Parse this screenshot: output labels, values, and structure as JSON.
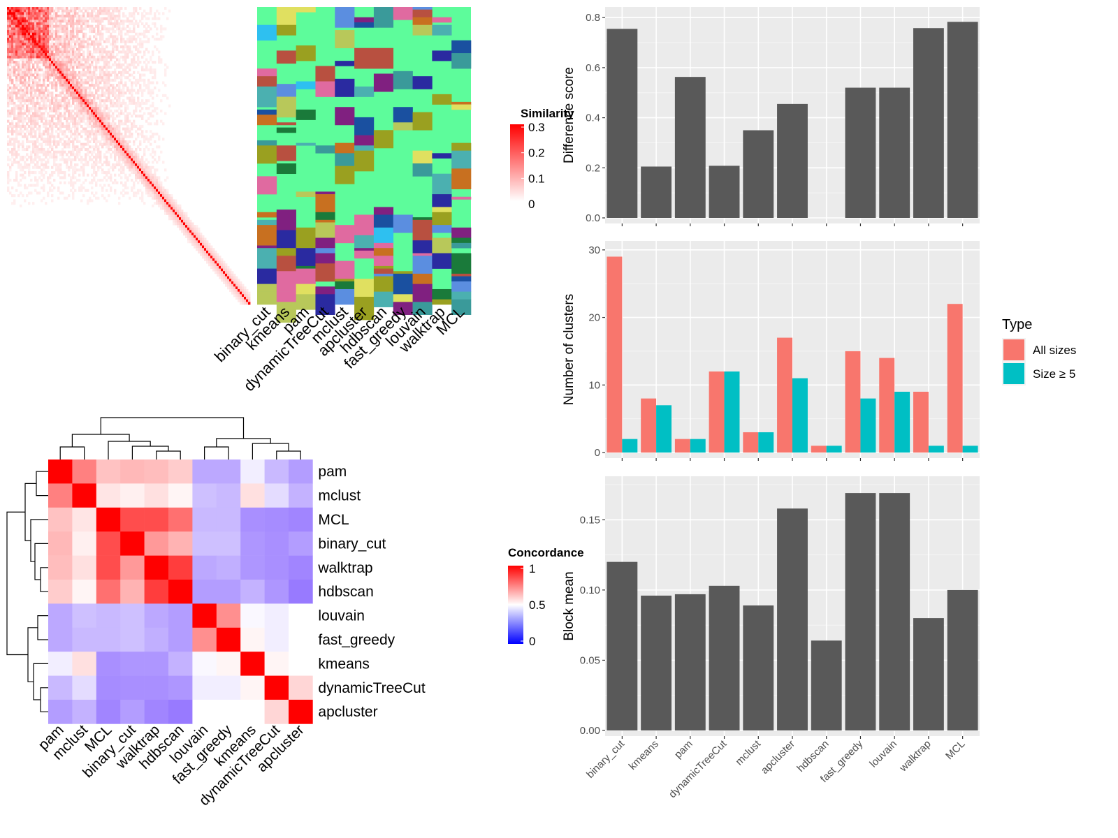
{
  "methods_col_order": [
    "binary_cut",
    "kmeans",
    "pam",
    "dynamicTreeCut",
    "mclust",
    "apcluster",
    "hdbscan",
    "fast_greedy",
    "louvain",
    "walktrap",
    "MCL"
  ],
  "similarity_legend": {
    "title": "Similarity",
    "ticks": [
      "0.3",
      "0.2",
      "0.1",
      "0"
    ],
    "colors": {
      "low": "#ffffff",
      "high": "#ff0000"
    }
  },
  "concordance_legend": {
    "title": "Concordance",
    "ticks": [
      "1",
      "0.5",
      "0"
    ],
    "colors": {
      "low": "#0000ff",
      "mid": "#ffffff",
      "high": "#ff0000"
    }
  },
  "concordance_order": [
    "pam",
    "mclust",
    "MCL",
    "binary_cut",
    "walktrap",
    "hdbscan",
    "louvain",
    "fast_greedy",
    "kmeans",
    "dynamicTreeCut",
    "apcluster"
  ],
  "concordance_matrix": [
    [
      1.0,
      0.75,
      0.62,
      0.64,
      0.63,
      0.6,
      0.25,
      0.25,
      0.45,
      0.3,
      0.22
    ],
    [
      0.75,
      1.0,
      0.55,
      0.53,
      0.56,
      0.52,
      0.32,
      0.3,
      0.56,
      0.4,
      0.28
    ],
    [
      0.62,
      0.55,
      1.0,
      0.85,
      0.85,
      0.78,
      0.3,
      0.3,
      0.18,
      0.17,
      0.15
    ],
    [
      0.64,
      0.53,
      0.85,
      1.0,
      0.7,
      0.65,
      0.32,
      0.32,
      0.2,
      0.18,
      0.22
    ],
    [
      0.63,
      0.56,
      0.85,
      0.7,
      1.0,
      0.88,
      0.25,
      0.27,
      0.2,
      0.18,
      0.15
    ],
    [
      0.6,
      0.52,
      0.78,
      0.65,
      0.88,
      1.0,
      0.22,
      0.22,
      0.28,
      0.2,
      0.12
    ],
    [
      0.25,
      0.32,
      0.3,
      0.32,
      0.25,
      0.22,
      1.0,
      0.72,
      0.48,
      0.45,
      0.5
    ],
    [
      0.25,
      0.3,
      0.3,
      0.32,
      0.27,
      0.22,
      0.72,
      1.0,
      0.52,
      0.45,
      0.5
    ],
    [
      0.45,
      0.56,
      0.18,
      0.2,
      0.2,
      0.28,
      0.48,
      0.52,
      1.0,
      0.52,
      0.5
    ],
    [
      0.3,
      0.4,
      0.17,
      0.18,
      0.18,
      0.2,
      0.45,
      0.45,
      0.52,
      1.0,
      0.58
    ],
    [
      0.22,
      0.28,
      0.15,
      0.22,
      0.15,
      0.12,
      0.5,
      0.5,
      0.5,
      0.58,
      1.0
    ]
  ],
  "chart_data": [
    {
      "type": "bar",
      "categories": [
        "binary_cut",
        "kmeans",
        "pam",
        "dynamicTreeCut",
        "mclust",
        "apcluster",
        "hdbscan",
        "fast_greedy",
        "louvain",
        "walktrap",
        "MCL"
      ],
      "values": [
        0.755,
        0.205,
        0.563,
        0.208,
        0.35,
        0.455,
        0,
        0.52,
        0.52,
        0.758,
        0.783
      ],
      "ylabel": "Difference score",
      "ylim": [
        0,
        0.82
      ],
      "yticks": [
        "0.0",
        "0.2",
        "0.4",
        "0.6",
        "0.8"
      ],
      "grid": true,
      "color": "#595959"
    },
    {
      "type": "bar",
      "categories": [
        "binary_cut",
        "kmeans",
        "pam",
        "dynamicTreeCut",
        "mclust",
        "apcluster",
        "hdbscan",
        "fast_greedy",
        "louvain",
        "walktrap",
        "MCL"
      ],
      "series": [
        {
          "name": "All sizes",
          "values": [
            29,
            8,
            2,
            12,
            3,
            17,
            1,
            15,
            14,
            9,
            22
          ],
          "color": "#f8766d"
        },
        {
          "name": "Size ≥ 5",
          "values": [
            2,
            7,
            2,
            12,
            3,
            11,
            1,
            8,
            9,
            1,
            1
          ],
          "color": "#00bfc4"
        }
      ],
      "ylabel": "Number of clusters",
      "ylim": [
        0,
        30.5
      ],
      "yticks": [
        "0",
        "10",
        "20",
        "30"
      ],
      "legend_title": "Type",
      "legend": "right",
      "grid": true
    },
    {
      "type": "bar",
      "categories": [
        "binary_cut",
        "kmeans",
        "pam",
        "dynamicTreeCut",
        "mclust",
        "apcluster",
        "hdbscan",
        "fast_greedy",
        "louvain",
        "walktrap",
        "MCL"
      ],
      "values": [
        0.12,
        0.096,
        0.097,
        0.103,
        0.089,
        0.158,
        0.064,
        0.169,
        0.169,
        0.08,
        0.1
      ],
      "ylabel": "Block mean",
      "ylim": [
        0,
        0.177
      ],
      "yticks": [
        "0.00",
        "0.05",
        "0.10",
        "0.15"
      ],
      "grid": true,
      "color": "#595959"
    }
  ]
}
